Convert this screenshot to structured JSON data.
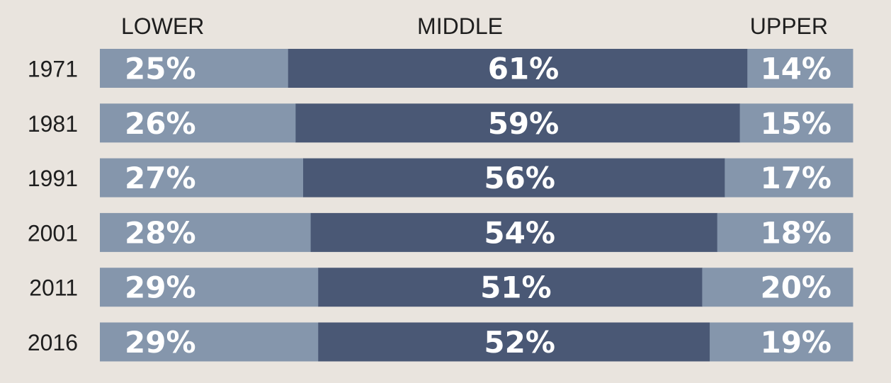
{
  "chart_data": {
    "type": "bar",
    "stacked": true,
    "orientation": "horizontal",
    "normalized_to_percent": true,
    "categories": [
      "1971",
      "1981",
      "1991",
      "2001",
      "2011",
      "2016"
    ],
    "series": [
      {
        "name": "LOWER",
        "values": [
          25,
          26,
          27,
          28,
          29,
          29
        ],
        "labels": [
          "25%",
          "26%",
          "27%",
          "28%",
          "29%",
          "29%"
        ],
        "color": "#8596ac"
      },
      {
        "name": "MIDDLE",
        "values": [
          61,
          59,
          56,
          54,
          51,
          52
        ],
        "labels": [
          "61%",
          "59%",
          "56%",
          "54%",
          "51%",
          "52%"
        ],
        "color": "#4a5875"
      },
      {
        "name": "UPPER",
        "values": [
          14,
          15,
          17,
          18,
          20,
          19
        ],
        "labels": [
          "14%",
          "15%",
          "17%",
          "18%",
          "20%",
          "19%"
        ],
        "color": "#8596ac"
      }
    ],
    "xlim": [
      0,
      100
    ],
    "grid": false
  },
  "colors": {
    "background": "#e9e4de",
    "text_dark": "#1e1e1e",
    "text_light": "#ffffff"
  }
}
